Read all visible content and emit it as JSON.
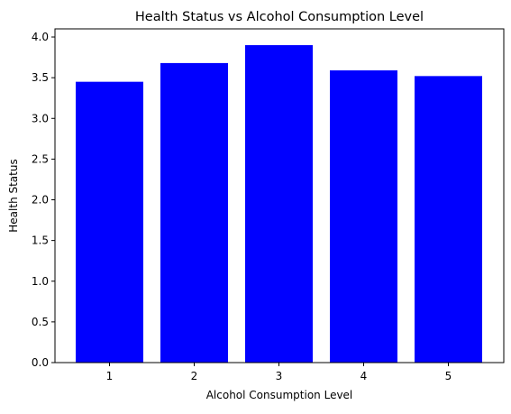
{
  "chart_data": {
    "type": "bar",
    "title": "Health Status vs Alcohol Consumption Level",
    "xlabel": "Alcohol Consumption Level",
    "ylabel": "Health Status",
    "categories": [
      "1",
      "2",
      "3",
      "4",
      "5"
    ],
    "values": [
      3.45,
      3.68,
      3.9,
      3.59,
      3.52
    ],
    "ylim": [
      0,
      4.1
    ],
    "yticks": [
      "0.0",
      "0.5",
      "1.0",
      "1.5",
      "2.0",
      "2.5",
      "3.0",
      "3.5",
      "4.0"
    ],
    "bar_color": "#0000ff",
    "grid": false,
    "legend": "none"
  }
}
